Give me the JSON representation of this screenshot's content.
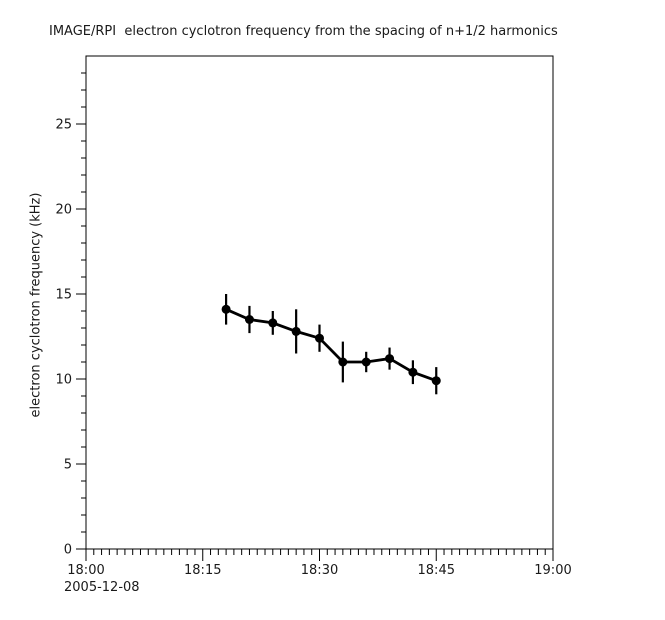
{
  "chart_data": {
    "type": "line",
    "title": "IMAGE/RPI  electron cyclotron frequency from the spacing of n+1/2 harmonics",
    "xlabel": "",
    "ylabel": "electron cyclotron frequency (kHz)",
    "x_date": "2005-12-08",
    "xlim_minutes": [
      0,
      60
    ],
    "ylim": [
      0,
      29
    ],
    "grid": false,
    "legend": null,
    "x_ticks": [
      {
        "label": "18:00",
        "minutes": 0
      },
      {
        "label": "18:15",
        "minutes": 15
      },
      {
        "label": "18:30",
        "minutes": 30
      },
      {
        "label": "18:45",
        "minutes": 45
      },
      {
        "label": "19:00",
        "minutes": 60
      }
    ],
    "x_minor_tick_interval_minutes": 1,
    "y_ticks": [
      0,
      5,
      10,
      15,
      20,
      25
    ],
    "y_minor_tick_interval": 1,
    "series": [
      {
        "name": "electron cyclotron frequency",
        "marker": "filled-circle",
        "color": "#000000",
        "points": [
          {
            "time": "18:18",
            "minutes": 18,
            "kHz": 14.1,
            "err_kHz": 0.9
          },
          {
            "time": "18:21",
            "minutes": 21,
            "kHz": 13.5,
            "err_kHz": 0.8
          },
          {
            "time": "18:24",
            "minutes": 24,
            "kHz": 13.3,
            "err_kHz": 0.7
          },
          {
            "time": "18:27",
            "minutes": 27,
            "kHz": 12.8,
            "err_kHz": 1.3
          },
          {
            "time": "18:30",
            "minutes": 30,
            "kHz": 12.4,
            "err_kHz": 0.8
          },
          {
            "time": "18:33",
            "minutes": 33,
            "kHz": 11.0,
            "err_kHz": 1.2
          },
          {
            "time": "18:36",
            "minutes": 36,
            "kHz": 11.0,
            "err_kHz": 0.6
          },
          {
            "time": "18:39",
            "minutes": 39,
            "kHz": 11.2,
            "err_kHz": 0.65
          },
          {
            "time": "18:42",
            "minutes": 42,
            "kHz": 10.4,
            "err_kHz": 0.7
          },
          {
            "time": "18:45",
            "minutes": 45,
            "kHz": 9.9,
            "err_kHz": 0.8
          }
        ]
      }
    ]
  }
}
